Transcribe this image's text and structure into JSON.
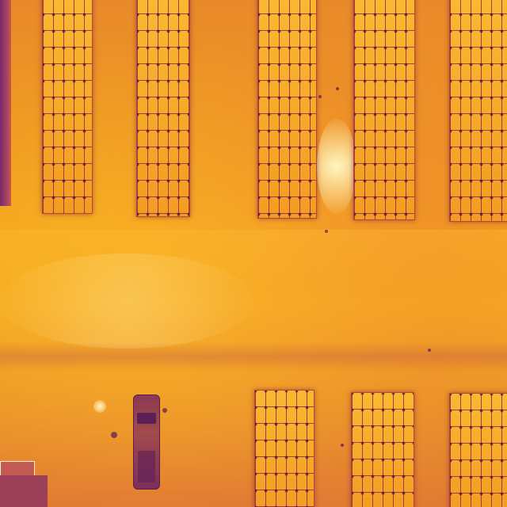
{
  "scene": {
    "kind": "thermal aerial image",
    "colors": {
      "hot": "#fff6c0",
      "warm": "#f6ad1f",
      "mid": "#e07a34",
      "cool": "#a44262",
      "cold": "#3a0d4a"
    },
    "panel_rows": [
      {
        "group": "top",
        "count": 5
      },
      {
        "group": "bottom",
        "count": 3
      }
    ],
    "vehicles": 1
  }
}
